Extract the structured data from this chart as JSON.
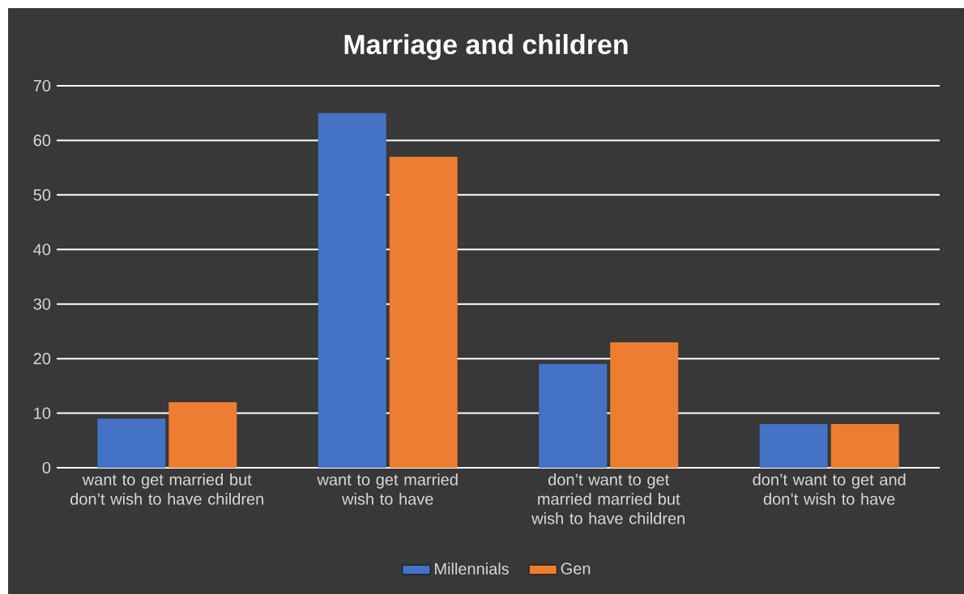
{
  "chart_data": {
    "type": "bar",
    "title": "Marriage and children",
    "categories": [
      "want to get married but don’t wish to have children",
      "want to get married wish to have",
      "don’t want to get married married but wish to have children",
      "don’t want to get and don’t wish to have"
    ],
    "series": [
      {
        "name": "Millennials",
        "color": "#4472c4",
        "values": [
          9,
          65,
          19,
          8
        ]
      },
      {
        "name": "Gen",
        "color": "#ed7d31",
        "values": [
          12,
          57,
          23,
          8
        ]
      }
    ],
    "ylim": [
      0,
      70
    ],
    "yticks": [
      0,
      10,
      20,
      30,
      40,
      50,
      60,
      70
    ],
    "grid": "y",
    "legend": "bottom"
  }
}
